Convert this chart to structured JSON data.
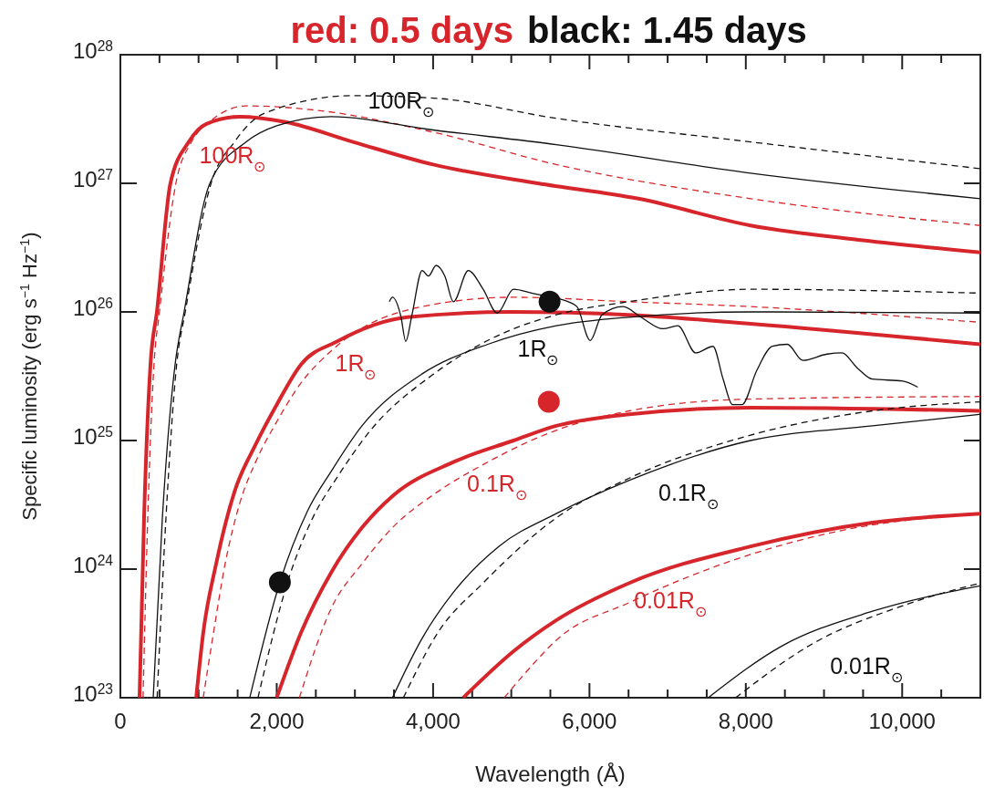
{
  "chart_data": {
    "type": "line",
    "title": "red: 0.5 days",
    "subtitle": "black: 1.45 days",
    "xlabel": "Wavelength (Å)",
    "ylabel": "Specific luminosity (erg s$^{−1}$ Hz$^{−1}$)",
    "log": "y",
    "xlim": [
      0,
      11000
    ],
    "ylim": [
      1e+23,
      1e+28
    ],
    "xticks": [
      0,
      {
        "value": 500,
        "label": null
      },
      {
        "value": 1000,
        "label": null
      },
      {
        "value": 1500,
        "label": null
      },
      {
        "value": 2000,
        "label": "2,000"
      },
      {
        "value": 2500,
        "label": null
      },
      {
        "value": 3000,
        "label": null
      },
      {
        "value": 3500,
        "label": null
      },
      {
        "value": 4000,
        "label": "4,000"
      },
      {
        "value": 4500,
        "label": null
      },
      {
        "value": 5000,
        "label": null
      },
      {
        "value": 5500,
        "label": null
      },
      {
        "value": 6000,
        "label": "6,000"
      },
      {
        "value": 6500,
        "label": null
      },
      {
        "value": 7000,
        "label": null
      },
      {
        "value": 7500,
        "label": null
      },
      {
        "value": 8000,
        "label": "8,000"
      },
      {
        "value": 8500,
        "label": null
      },
      {
        "value": 9000,
        "label": null
      },
      {
        "value": 9500,
        "label": null
      },
      {
        "value": 10000,
        "label": "10,000"
      },
      {
        "value": 10500,
        "label": null
      }
    ],
    "yticks": [
      {
        "value": 1e+23,
        "label": "10$^{23}$"
      },
      {
        "value": 1e+24,
        "label": "10$^{24}$"
      },
      {
        "value": 1e+25,
        "label": "10$^{25}$"
      },
      {
        "value": 1e+26,
        "label": "10$^{26}$"
      },
      {
        "value": 1e+27,
        "label": "10$^{27}$"
      },
      {
        "value": 1e+28,
        "label": "10$^{28}$"
      }
    ],
    "series": [
      {
        "type": "line",
        "color": "#d7262b",
        "line_style": "solid",
        "x": [
          245,
          303,
          385,
          467,
          640,
          875,
          1100,
          1530,
          2110,
          2975,
          4000,
          5340,
          6625,
          8060,
          9500,
          11000
        ],
        "values": [
          1e+23,
          2.5e+24,
          3.9e+25,
          1e+26,
          1e+27,
          2.1e+27,
          2.9e+27,
          3.3e+27,
          3e+27,
          2.1e+27,
          1.4e+27,
          1e+27,
          7.6e+26,
          4.7e+26,
          3.6e+26,
          2.9e+26
        ]
      },
      {
        "type": "line",
        "color": "#d7262b",
        "line_style": "dashed",
        "x": [
          290,
          350,
          430,
          500,
          710,
          910,
          1140,
          1610,
          2510,
          4000,
          5575,
          8060,
          11000
        ],
        "values": [
          1e+23,
          2.5e+24,
          3.9e+25,
          1e+26,
          1e+27,
          2.1e+27,
          3e+27,
          4e+27,
          3.7e+27,
          2.5e+27,
          1.4e+27,
          7.6e+26,
          4.7e+26
        ]
      },
      {
        "type": "line",
        "color": "#111111",
        "line_style": "solid",
        "x": [
          420,
          537,
          700,
          815,
          1145,
          1610,
          2000,
          2695,
          4000,
          5575,
          8060,
          11000
        ],
        "values": [
          1e+23,
          2.5e+24,
          3.9e+25,
          1e+26,
          1e+27,
          2.1e+27,
          2.8e+27,
          3.3e+27,
          2.6e+27,
          2e+27,
          1.2e+27,
          7.6e+26
        ]
      },
      {
        "type": "line",
        "color": "#111111",
        "line_style": "dashed",
        "x": [
          470,
          583,
          720,
          830,
          1160,
          1460,
          1840,
          2975,
          4000,
          5575,
          8060,
          11000
        ],
        "values": [
          1e+23,
          2.5e+24,
          3.9e+25,
          1e+26,
          1e+27,
          2.1e+27,
          3.5e+27,
          4.8e+27,
          4.6e+27,
          3.2e+27,
          2.1e+27,
          1.3e+27
        ]
      },
      {
        "type": "line",
        "color": "#d7262b",
        "line_style": "solid",
        "x": [
          970,
          1060,
          1225,
          1460,
          1730,
          2000,
          2310,
          2775,
          3670,
          5000,
          6500,
          8060,
          11000
        ],
        "values": [
          1e+23,
          3.2e+23,
          1.1e+24,
          4e+24,
          9.3e+24,
          1.9e+25,
          3.9e+25,
          5.9e+25,
          9.1e+25,
          1e+26,
          9.5e+25,
          8.1e+25,
          5.6e+25
        ]
      },
      {
        "type": "line",
        "color": "#d7262b",
        "line_style": "dashed",
        "x": [
          1060,
          1180,
          1340,
          1530,
          1730,
          2000,
          2310,
          2700,
          3860,
          5030,
          6510,
          8060,
          11000
        ],
        "values": [
          1e+23,
          2.9e+23,
          1.1e+24,
          3.3e+24,
          6.8e+24,
          1.4e+25,
          2.8e+25,
          5e+25,
          1.1e+26,
          1.3e+26,
          1.2e+26,
          1.1e+26,
          8.3e+25
        ]
      },
      {
        "type": "line",
        "color": "#111111",
        "line_style": "solid",
        "x": [
          1655,
          2040,
          2390,
          2700,
          3090,
          3860,
          4700,
          5575,
          6500,
          8060,
          11000
        ],
        "values": [
          1e+23,
          7.9e+23,
          2.8e+24,
          5.8e+24,
          1.3e+25,
          3.3e+25,
          5.6e+25,
          7.8e+25,
          9.1e+25,
          1e+26,
          9.8e+25
        ]
      },
      {
        "type": "line",
        "color": "#111111",
        "line_style": "dashed",
        "x": [
          1760,
          2160,
          2460,
          2775,
          3200,
          3980,
          4700,
          5575,
          6500,
          8060,
          11000
        ],
        "values": [
          1e+23,
          8.7e+23,
          2.5e+24,
          5.2e+24,
          1.2e+25,
          3.2e+25,
          6e+25,
          9.5e+25,
          1.2e+26,
          1.5e+26,
          1.4e+26
        ]
      },
      {
        "type": "line",
        "color": "#d7262b",
        "line_style": "solid",
        "x": [
          2000,
          2310,
          2700,
          3090,
          3480,
          4260,
          5030,
          5575,
          6510,
          8060,
          11000
        ],
        "values": [
          1e+23,
          3.2e+23,
          9.5e+23,
          2.1e+24,
          3.7e+24,
          6.8e+24,
          1e+25,
          1.3e+25,
          1.6e+25,
          1.8e+25,
          1.7e+25
        ]
      },
      {
        "type": "line",
        "color": "#d7262b",
        "line_style": "dashed",
        "x": [
          2290,
          2700,
          3090,
          3480,
          4060,
          4640,
          5575,
          6510,
          8060,
          11000
        ],
        "values": [
          1e+23,
          5e+23,
          1.1e+24,
          2.1e+24,
          4e+24,
          6.5e+24,
          1.2e+25,
          1.7e+25,
          2.1e+25,
          2.2e+25
        ]
      },
      {
        "type": "line",
        "color": "#111111",
        "line_style": "solid",
        "x": [
          3480,
          3860,
          4260,
          4840,
          5575,
          6510,
          8060,
          9620,
          11000
        ],
        "values": [
          1e+23,
          2.9e+23,
          6.6e+23,
          1.5e+24,
          2.7e+24,
          4.9e+24,
          1e+25,
          1.3e+25,
          1.6e+25
        ]
      },
      {
        "type": "line",
        "color": "#111111",
        "line_style": "dashed",
        "x": [
          3620,
          4060,
          4640,
          5575,
          6510,
          8060,
          9620,
          11000
        ],
        "values": [
          1e+23,
          3.2e+23,
          7.8e+23,
          2.5e+24,
          5.1e+24,
          1.1e+25,
          1.7e+25,
          2e+25
        ]
      },
      {
        "type": "line",
        "color": "#d7262b",
        "line_style": "solid",
        "x": [
          4385,
          5030,
          5575,
          6510,
          8060,
          9620,
          11000
        ],
        "values": [
          1e+23,
          2.3e+23,
          4e+23,
          7.8e+23,
          1.5e+24,
          2.3e+24,
          2.7e+24
        ]
      },
      {
        "type": "line",
        "color": "#d7262b",
        "line_style": "dashed",
        "x": [
          4910,
          5340,
          5575,
          6510,
          8060,
          9230,
          11000
        ],
        "values": [
          1e+23,
          2e+23,
          2.8e+23,
          5.5e+23,
          1.3e+24,
          2e+24,
          2.7e+24
        ]
      },
      {
        "type": "line",
        "color": "#111111",
        "line_style": "solid",
        "x": [
          7520,
          8450,
          9620,
          11000
        ],
        "values": [
          1e+23,
          2.5e+23,
          4.7e+23,
          7.4e+23
        ]
      },
      {
        "type": "line",
        "color": "#111111",
        "line_style": "dashed",
        "x": [
          7870,
          8840,
          10010,
          11000
        ],
        "values": [
          1e+23,
          2.6e+23,
          5.2e+23,
          7.8e+23
        ]
      },
      {
        "type": "line",
        "color": "#111111",
        "line_style": "solid",
        "x": [
          3440,
          3480,
          3590,
          3650,
          3730,
          3860,
          3940,
          4040,
          4150,
          4260,
          4450,
          4640,
          4820,
          5030,
          5260,
          5500,
          5730,
          5840,
          6010,
          6160,
          6430,
          6660,
          6940,
          7130,
          7360,
          7580,
          7710,
          7830,
          7950,
          8140,
          8340,
          8530,
          8730,
          9040,
          9230,
          9420,
          9620,
          10010,
          10200
        ],
        "values": [
          1.2e+26,
          1.3e+26,
          9.1e+25,
          5.9e+25,
          9.5e+25,
          2.1e+26,
          1.9e+26,
          2.3e+26,
          1.9e+26,
          1.2e+26,
          2.1e+26,
          1.5e+26,
          9.8e+25,
          1.5e+26,
          1.4e+26,
          1.3e+26,
          1.2e+26,
          1.1e+26,
          6e+25,
          9.5e+25,
          1.1e+26,
          9.1e+25,
          7.4e+25,
          7.8e+25,
          4.8e+25,
          5.4e+25,
          3e+25,
          1.9e+25,
          1.9e+25,
          3.5e+25,
          5.4e+25,
          5.6e+25,
          4.2e+25,
          4.7e+25,
          4.8e+25,
          3.7e+25,
          3e+25,
          2.9e+25,
          2.6e+25
        ]
      },
      {
        "type": "scatter",
        "color": "#111111",
        "marker": "circle",
        "x": [
          2040,
          5490
        ],
        "values": [
          7.9e+23,
          1.2e+26
        ]
      },
      {
        "type": "scatter",
        "color": "#d7262b",
        "marker": "circle",
        "x": [
          5480
        ],
        "values": [
          2e+25
        ]
      }
    ],
    "annotations": [
      "100R$_{⊙}$",
      "100R$_{⊙}$",
      "1R$_{⊙}$",
      "1R$_{⊙}$",
      "0.1R$_{⊙}$",
      "0.1R$_{⊙}$",
      "0.01R$_{⊙}$",
      "0.01R$_{⊙}$"
    ]
  }
}
